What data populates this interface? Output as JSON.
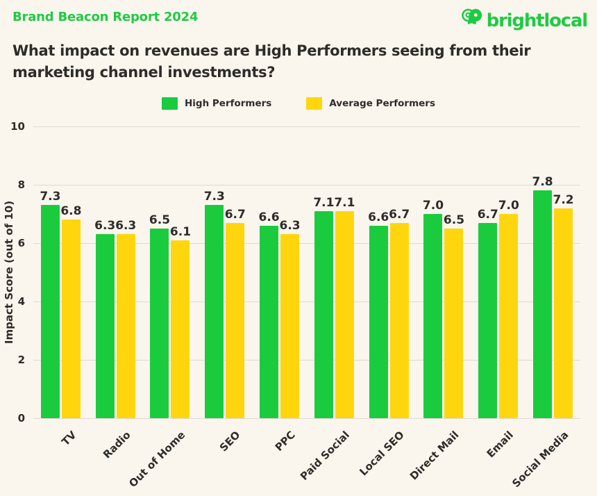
{
  "header": {
    "report_label": "Brand Beacon Report 2024",
    "logo_text": "brightlocal",
    "title_line1": "What impact on revenues are High Performers seeing from their",
    "title_line2": "marketing channel investments?"
  },
  "colors": {
    "brand_green": "#1FCB43",
    "bar_green": "#1BCB3E",
    "bar_yellow": "#FFD60D",
    "background": "#FAF6EE",
    "text_dark": "#2E2C29",
    "gridline": "#DEDAD2"
  },
  "legend": {
    "items": [
      {
        "label": "High Performers",
        "color": "#1BCB3E"
      },
      {
        "label": "Average Performers",
        "color": "#FFD60D"
      }
    ]
  },
  "chart_data": {
    "type": "bar",
    "title": "What impact on revenues are High Performers seeing from their marketing channel investments?",
    "categories": [
      "TV",
      "Radio",
      "Out of Home",
      "SEO",
      "PPC",
      "Paid Social",
      "Local SEO",
      "Direct Mail",
      "Email",
      "Social Media"
    ],
    "series": [
      {
        "name": "High Performers",
        "color": "#1BCB3E",
        "values": [
          7.3,
          6.3,
          6.5,
          7.3,
          6.6,
          7.1,
          6.6,
          7.0,
          6.7,
          7.8
        ]
      },
      {
        "name": "Average Performers",
        "color": "#FFD60D",
        "values": [
          6.8,
          6.3,
          6.1,
          6.7,
          6.3,
          7.1,
          6.7,
          6.5,
          7.0,
          7.2
        ]
      }
    ],
    "xlabel": "",
    "ylabel": "Impact Score (out of 10)",
    "ylim": [
      0,
      10
    ],
    "yticks": [
      0,
      2,
      4,
      6,
      8,
      10
    ],
    "grid": true,
    "legend_position": "top",
    "value_labels_decimals": 1
  }
}
